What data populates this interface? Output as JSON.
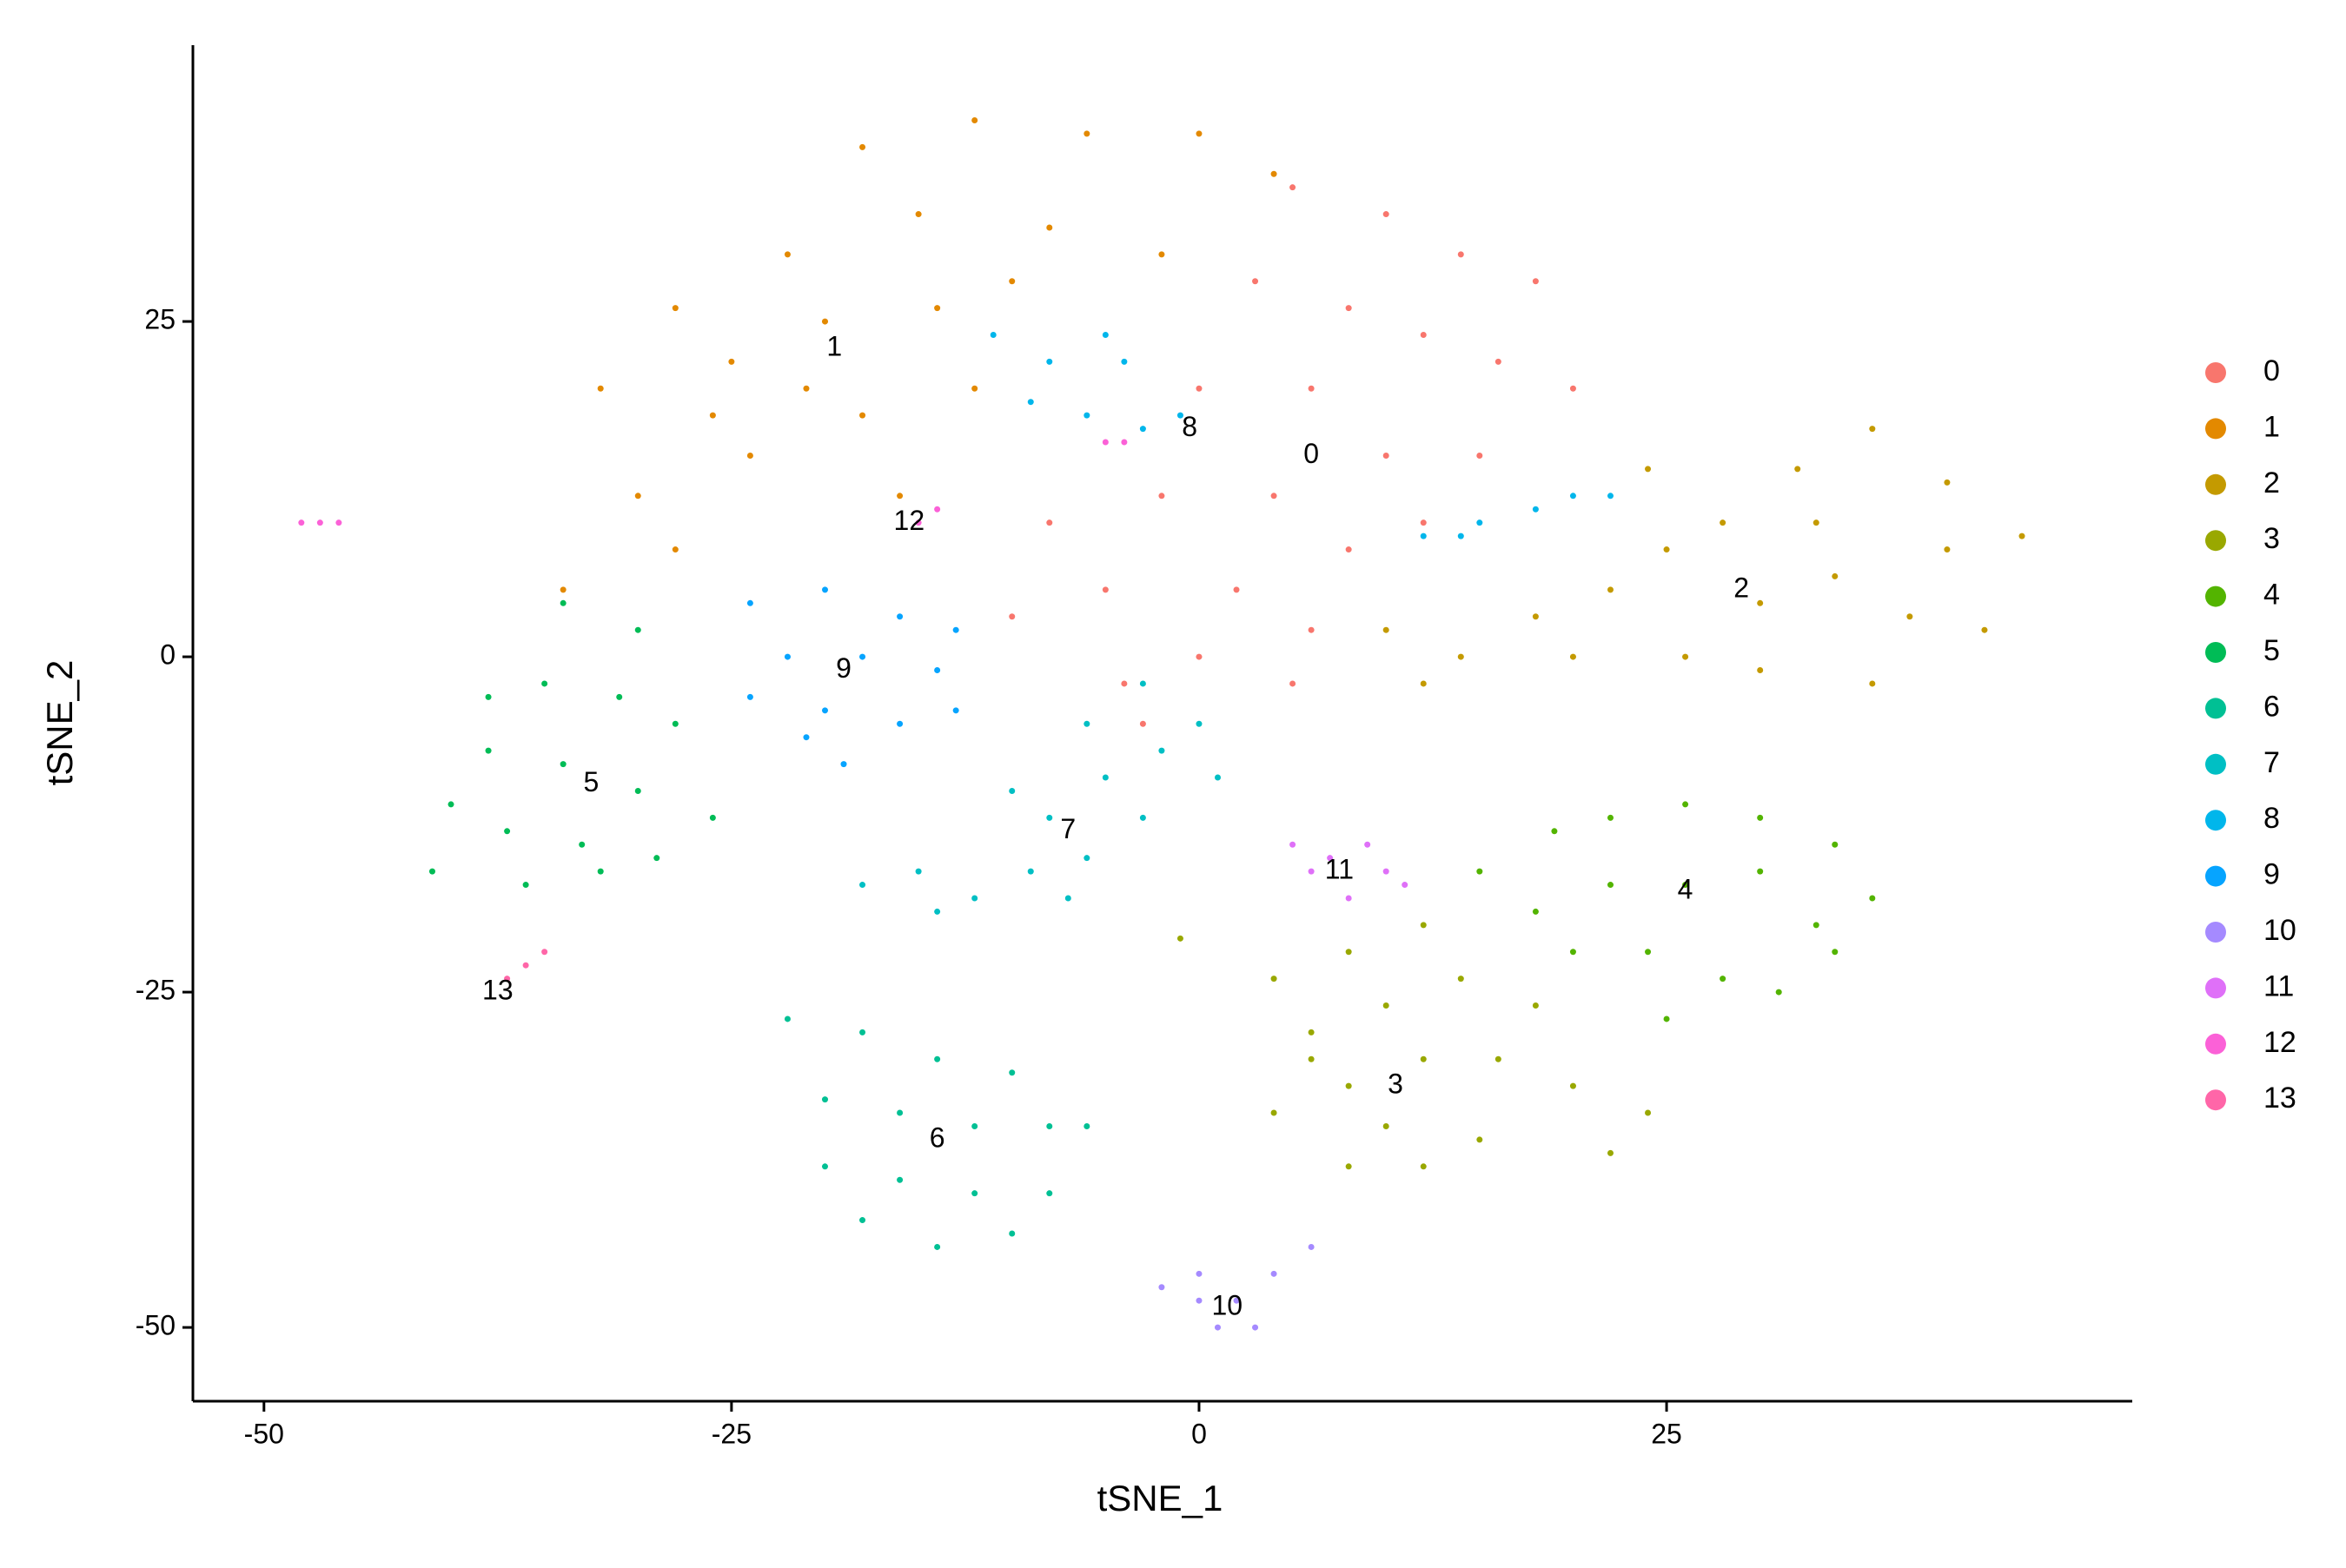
{
  "chart_data": {
    "type": "scatter",
    "x_label": "tSNE_1",
    "y_label": "tSNE_2",
    "xlim": [
      -53.8,
      49.9
    ],
    "ylim": [
      -55.5,
      45.6
    ],
    "xticks": [
      -50,
      -25,
      0,
      25
    ],
    "yticks": [
      -50,
      -25,
      0,
      25
    ],
    "legend": "right",
    "series": [
      {
        "name": "0",
        "color": "#F8766D",
        "x": [
          5,
          10,
          14,
          18,
          3,
          8,
          12,
          16,
          20,
          0,
          6,
          10,
          4,
          -2,
          -8,
          8,
          2,
          -5,
          6,
          -10,
          0,
          -4,
          5,
          15,
          12,
          -3
        ],
        "y": [
          35,
          33,
          30,
          28,
          28,
          26,
          24,
          22,
          20,
          20,
          20,
          15,
          12,
          12,
          10,
          8,
          5,
          5,
          2,
          3,
          0,
          -2,
          -2,
          15,
          10,
          -5
        ]
      },
      {
        "name": "1",
        "color": "#E38900",
        "x": [
          -18,
          -12,
          -6,
          0,
          4,
          -22,
          -15,
          -8,
          -2,
          -28,
          -20,
          -14,
          -32,
          -25,
          -18,
          -12,
          -30,
          -24,
          -16,
          -34,
          -28,
          -10,
          -21,
          -26
        ],
        "y": [
          38,
          40,
          39,
          39,
          36,
          30,
          33,
          32,
          30,
          26,
          25,
          26,
          20,
          22,
          18,
          20,
          12,
          15,
          12,
          5,
          8,
          28,
          20,
          18
        ]
      },
      {
        "name": "2",
        "color": "#C49A00",
        "x": [
          10,
          14,
          18,
          22,
          25,
          28,
          32,
          36,
          40,
          44,
          30,
          34,
          38,
          26,
          30,
          36,
          42,
          20,
          12,
          24,
          33,
          40
        ],
        "y": [
          2,
          0,
          3,
          5,
          8,
          10,
          14,
          17,
          13,
          9,
          4,
          6,
          3,
          0,
          -1,
          -2,
          2,
          0,
          -2,
          14,
          10,
          8
        ]
      },
      {
        "name": "3",
        "color": "#99A800",
        "x": [
          -1,
          4,
          8,
          12,
          6,
          10,
          14,
          18,
          4,
          8,
          12,
          16,
          20,
          24,
          8,
          12,
          15,
          22,
          10,
          6
        ],
        "y": [
          -21,
          -24,
          -22,
          -20,
          -28,
          -26,
          -24,
          -26,
          -34,
          -32,
          -30,
          -30,
          -32,
          -34,
          -38,
          -38,
          -36,
          -37,
          -35,
          -30
        ]
      },
      {
        "name": "4",
        "color": "#53B400",
        "x": [
          15,
          19,
          22,
          26,
          30,
          34,
          36,
          18,
          22,
          26,
          30,
          33,
          20,
          24,
          28,
          31,
          25,
          34
        ],
        "y": [
          -16,
          -13,
          -12,
          -11,
          -12,
          -14,
          -18,
          -19,
          -17,
          -17,
          -16,
          -20,
          -22,
          -22,
          -24,
          -25,
          -27,
          -22
        ]
      },
      {
        "name": "5",
        "color": "#00BC56",
        "x": [
          -34,
          -30,
          -35,
          -31,
          -38,
          -34,
          -30,
          -26,
          -40,
          -37,
          -33,
          -29,
          -41,
          -36,
          -32,
          -38,
          -28
        ],
        "y": [
          4,
          2,
          -2,
          -3,
          -7,
          -8,
          -10,
          -12,
          -11,
          -13,
          -14,
          -15,
          -16,
          -17,
          -16,
          -3,
          -5
        ]
      },
      {
        "name": "6",
        "color": "#00C094",
        "x": [
          -22,
          -18,
          -14,
          -10,
          -20,
          -16,
          -12,
          -8,
          -20,
          -16,
          -12,
          -8,
          -18,
          -14,
          -10,
          -6
        ],
        "y": [
          -27,
          -28,
          -30,
          -31,
          -33,
          -34,
          -35,
          -35,
          -38,
          -39,
          -40,
          -40,
          -42,
          -44,
          -43,
          -35
        ]
      },
      {
        "name": "7",
        "color": "#00BFC4",
        "x": [
          -18,
          -15,
          -12,
          -9,
          -6,
          -3,
          -8,
          -5,
          -2,
          0,
          -6,
          -3,
          -10,
          -14,
          -7,
          1
        ],
        "y": [
          -17,
          -16,
          -18,
          -16,
          -15,
          -12,
          -12,
          -9,
          -7,
          -5,
          -5,
          -2,
          -10,
          -19,
          -18,
          -9
        ]
      },
      {
        "name": "8",
        "color": "#00B6EB",
        "x": [
          -11,
          -8,
          -5,
          -9,
          -6,
          -3,
          -1,
          -4,
          12,
          15,
          18,
          20,
          22,
          14
        ],
        "y": [
          24,
          22,
          24,
          19,
          18,
          17,
          18,
          22,
          9,
          10,
          11,
          12,
          12,
          9
        ]
      },
      {
        "name": "9",
        "color": "#06A4FF",
        "x": [
          -24,
          -20,
          -16,
          -13,
          -22,
          -18,
          -14,
          -24,
          -20,
          -16,
          -13,
          -19,
          -21
        ],
        "y": [
          4,
          5,
          3,
          2,
          0,
          0,
          -1,
          -3,
          -4,
          -5,
          -4,
          -8,
          -6
        ]
      },
      {
        "name": "10",
        "color": "#A58AFF",
        "x": [
          -2,
          0,
          2,
          4,
          6,
          1,
          3,
          0
        ],
        "y": [
          -47,
          -46,
          -48,
          -46,
          -44,
          -50,
          -50,
          -48
        ]
      },
      {
        "name": "11",
        "color": "#DF70F8",
        "x": [
          5,
          7,
          9,
          10,
          8,
          6,
          11
        ],
        "y": [
          -14,
          -15,
          -14,
          -16,
          -18,
          -16,
          -17
        ]
      },
      {
        "name": "12",
        "color": "#FB61D7",
        "x": [
          -48,
          -47,
          -46,
          -15,
          -14,
          -5,
          -4
        ],
        "y": [
          10,
          10,
          10,
          10,
          11,
          16,
          16
        ]
      },
      {
        "name": "13",
        "color": "#FF66A8",
        "x": [
          -37,
          -36,
          -35
        ],
        "y": [
          -24,
          -23,
          -22
        ]
      }
    ],
    "annotations": [
      {
        "text": "0",
        "x": 6,
        "y": 15
      },
      {
        "text": "1",
        "x": -19.5,
        "y": 23
      },
      {
        "text": "2",
        "x": 29,
        "y": 5
      },
      {
        "text": "3",
        "x": 10.5,
        "y": -32
      },
      {
        "text": "4",
        "x": 26,
        "y": -17.5
      },
      {
        "text": "5",
        "x": -32.5,
        "y": -9.5
      },
      {
        "text": "6",
        "x": -14,
        "y": -36
      },
      {
        "text": "7",
        "x": -7,
        "y": -13
      },
      {
        "text": "8",
        "x": -0.5,
        "y": 17
      },
      {
        "text": "9",
        "x": -19,
        "y": -1
      },
      {
        "text": "10",
        "x": 1.5,
        "y": -48.5
      },
      {
        "text": "11",
        "x": 7.5,
        "y": -16
      },
      {
        "text": "12",
        "x": -15.5,
        "y": 10
      },
      {
        "text": "13",
        "x": -37.5,
        "y": -25
      }
    ]
  }
}
